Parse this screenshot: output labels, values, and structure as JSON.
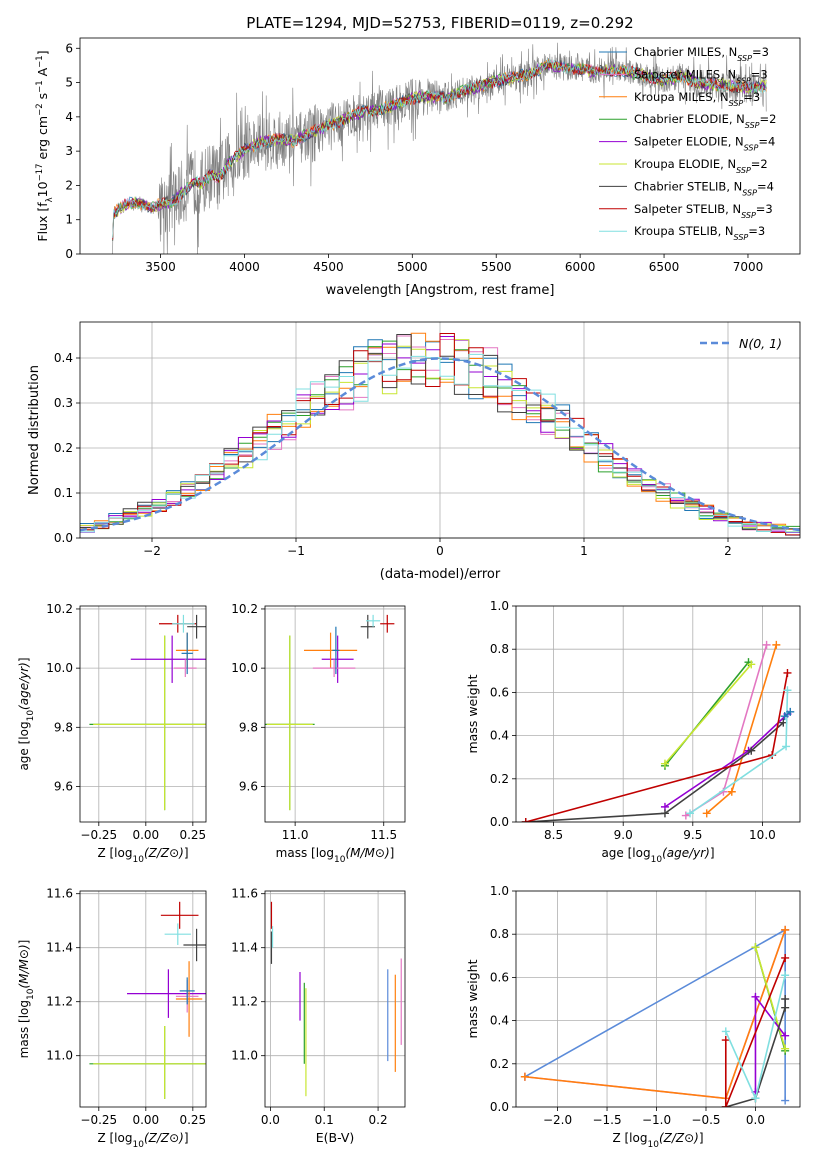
{
  "figure": {
    "title": "PLATE=1294, MJD=52753, FIBERID=0119, z=0.292"
  },
  "chart_data": [
    {
      "id": "spectrum",
      "type": "line",
      "title": "PLATE=1294, MJD=52753, FIBERID=0119, z=0.292",
      "xlabel": "wavelength [Angstrom, rest frame]",
      "ylabel": "Flux [f$_\\lambda$10$^{-17}$ erg cm$^{-2}$ s$^{-1}$ A$^{-1}$]",
      "ylabel_parts": [
        "Flux [f",
        "λ",
        "10",
        "−17",
        " erg cm",
        "−2",
        " s",
        "−1",
        " A",
        "−1",
        "]"
      ],
      "xlim": [
        3020,
        7310
      ],
      "ylim": [
        0,
        6.3
      ],
      "xticks": [
        3500,
        4000,
        4500,
        5000,
        5500,
        6000,
        6500,
        7000
      ],
      "yticks": [
        0,
        1,
        2,
        3,
        4,
        5,
        6
      ],
      "legend_position": "top-right",
      "data_color": "#808080",
      "continuum": [
        [
          3210,
          0.0
        ],
        [
          3220,
          1.15
        ],
        [
          3260,
          1.35
        ],
        [
          3300,
          1.45
        ],
        [
          3350,
          1.5
        ],
        [
          3400,
          1.45
        ],
        [
          3450,
          1.35
        ],
        [
          3500,
          1.45
        ],
        [
          3550,
          1.5
        ],
        [
          3600,
          1.65
        ],
        [
          3650,
          1.9
        ],
        [
          3700,
          2.1
        ],
        [
          3750,
          2.05
        ],
        [
          3800,
          2.35
        ],
        [
          3850,
          2.2
        ],
        [
          3900,
          2.6
        ],
        [
          3950,
          2.85
        ],
        [
          4000,
          3.05
        ],
        [
          4100,
          3.25
        ],
        [
          4200,
          3.35
        ],
        [
          4300,
          3.3
        ],
        [
          4400,
          3.55
        ],
        [
          4500,
          3.75
        ],
        [
          4600,
          3.95
        ],
        [
          4700,
          4.15
        ],
        [
          4800,
          4.2
        ],
        [
          4900,
          4.35
        ],
        [
          5000,
          4.55
        ],
        [
          5100,
          4.6
        ],
        [
          5200,
          4.55
        ],
        [
          5300,
          4.75
        ],
        [
          5400,
          4.9
        ],
        [
          5500,
          5.05
        ],
        [
          5600,
          5.15
        ],
        [
          5700,
          5.25
        ],
        [
          5800,
          5.5
        ],
        [
          5900,
          5.45
        ],
        [
          6000,
          5.4
        ],
        [
          6100,
          5.3
        ],
        [
          6200,
          5.35
        ],
        [
          6300,
          5.3
        ],
        [
          6400,
          5.2
        ],
        [
          6500,
          5.05
        ],
        [
          6600,
          5.2
        ],
        [
          6700,
          5.0
        ],
        [
          6800,
          4.95
        ],
        [
          6900,
          4.9
        ],
        [
          7000,
          4.85
        ],
        [
          7100,
          4.9
        ]
      ],
      "noise_sigma": [
        [
          3200,
          0.1
        ],
        [
          3480,
          0.15
        ],
        [
          3500,
          0.9
        ],
        [
          3700,
          1.0
        ],
        [
          4000,
          0.9
        ],
        [
          4300,
          0.8
        ],
        [
          4700,
          0.55
        ],
        [
          5000,
          0.6
        ],
        [
          5300,
          0.4
        ],
        [
          5800,
          0.4
        ],
        [
          6300,
          0.35
        ],
        [
          7100,
          0.45
        ]
      ],
      "series": [
        {
          "name": "Chabrier MILES, N$_{SSP}$=3",
          "label_main": "Chabrier MILES, N",
          "label_sub": "SSP",
          "label_end": "=3",
          "color": "#1f77b4"
        },
        {
          "name": "Salpeter MILES, N$_{SSP}$=3",
          "label_main": "Salpeter MILES, N",
          "label_sub": "SSP",
          "label_end": "=3",
          "color": "#e377c2"
        },
        {
          "name": "Kroupa MILES, N$_{SSP}$=3",
          "label_main": "Kroupa MILES, N",
          "label_sub": "SSP",
          "label_end": "=3",
          "color": "#ff7f0e"
        },
        {
          "name": "Chabrier ELODIE, N$_{SSP}$=2",
          "label_main": "Chabrier ELODIE, N",
          "label_sub": "SSP",
          "label_end": "=2",
          "color": "#2ca02c"
        },
        {
          "name": "Salpeter ELODIE, N$_{SSP}$=4",
          "label_main": "Salpeter ELODIE, N",
          "label_sub": "SSP",
          "label_end": "=4",
          "color": "#9400d3"
        },
        {
          "name": "Kroupa ELODIE, N$_{SSP}$=2",
          "label_main": "Kroupa ELODIE, N",
          "label_sub": "SSP",
          "label_end": "=2",
          "color": "#c8e632"
        },
        {
          "name": "Chabrier STELIB, N$_{SSP}$=4",
          "label_main": "Chabrier STELIB, N",
          "label_sub": "SSP",
          "label_end": "=4",
          "color": "#404040"
        },
        {
          "name": "Salpeter STELIB, N$_{SSP}$=3",
          "label_main": "Salpeter STELIB, N",
          "label_sub": "SSP",
          "label_end": "=3",
          "color": "#c00000"
        },
        {
          "name": "Kroupa STELIB, N$_{SSP}$=3",
          "label_main": "Kroupa STELIB, N",
          "label_sub": "SSP",
          "label_end": "=3",
          "color": "#80dfe0"
        }
      ]
    },
    {
      "id": "residuals",
      "type": "bar",
      "xlabel": "(data-model)/error",
      "ylabel": "Normed distribution",
      "xlim": [
        -2.5,
        2.5
      ],
      "ylim": [
        0,
        0.48
      ],
      "xticks": [
        -2,
        -1,
        0,
        1,
        2
      ],
      "yticks": [
        0.0,
        0.1,
        0.2,
        0.3,
        0.4
      ],
      "grid": true,
      "bin_width": 0.1,
      "bin_start": -2.5,
      "reference_curve": {
        "name": "$\\mathcal{N}(0,1)$",
        "label": "N(0, 1)",
        "color": "#5b8bd9",
        "style": "dashed",
        "legend_position": "top-right"
      },
      "histogram_colors": [
        "#1f77b4",
        "#e377c2",
        "#ff7f0e",
        "#2ca02c",
        "#9400d3",
        "#c8e632",
        "#404040",
        "#c00000",
        "#80dfe0"
      ]
    },
    {
      "id": "age_vs_Z",
      "type": "scatter",
      "xlabel": "Z [log10(Z/Z⊙)]",
      "ylabel": "age [log10(age/yr)]",
      "xlim": [
        -0.35,
        0.32
      ],
      "ylim": [
        9.48,
        10.21
      ],
      "xticks": [
        -0.25,
        0.0,
        0.25
      ],
      "yticks": [
        9.6,
        9.8,
        10.0,
        10.2
      ],
      "grid": true,
      "points": [
        {
          "x": 0.1,
          "y": 9.81,
          "xerr": 0.4,
          "yerr": [
            0.29,
            0.3
          ],
          "color": "#2ca02c"
        },
        {
          "x": 0.1,
          "y": 9.81,
          "xerr": 0.38,
          "yerr": [
            0.29,
            0.3
          ],
          "color": "#c8e632"
        },
        {
          "x": 0.17,
          "y": 10.15,
          "xerr": 0.1,
          "yerr": 0.03,
          "color": "#c00000"
        },
        {
          "x": 0.27,
          "y": 10.14,
          "xerr": 0.05,
          "yerr": 0.04,
          "color": "#404040"
        },
        {
          "x": 0.2,
          "y": 10.15,
          "xerr": 0.06,
          "yerr": 0.03,
          "color": "#80dfe0"
        },
        {
          "x": 0.14,
          "y": 10.03,
          "xerr": 0.22,
          "yerr": 0.08,
          "color": "#9400d3"
        },
        {
          "x": 0.22,
          "y": 10.06,
          "xerr": 0.06,
          "yerr": 0.06,
          "color": "#ff7f0e"
        },
        {
          "x": 0.21,
          "y": 10.0,
          "xerr": 0.06,
          "yerr": 0.03,
          "color": "#e377c2"
        },
        {
          "x": 0.22,
          "y": 10.05,
          "xerr": 0.03,
          "yerr": 0.07,
          "color": "#1f77b4"
        }
      ]
    },
    {
      "id": "age_vs_mass",
      "type": "scatter",
      "xlabel": "mass [log10(M/M⊙)]",
      "ylabel": "",
      "xlim": [
        10.83,
        11.62
      ],
      "ylim": [
        9.48,
        10.21
      ],
      "xticks": [
        11.0,
        11.5
      ],
      "yticks": [
        9.6,
        9.8,
        10.0,
        10.2
      ],
      "grid": true,
      "points": [
        {
          "x": 10.97,
          "y": 9.81,
          "xerr": 0.14,
          "yerr": [
            0.29,
            0.3
          ],
          "color": "#2ca02c"
        },
        {
          "x": 10.97,
          "y": 9.81,
          "xerr": 0.13,
          "yerr": [
            0.29,
            0.3
          ],
          "color": "#c8e632"
        },
        {
          "x": 11.52,
          "y": 10.15,
          "xerr": 0.04,
          "yerr": 0.03,
          "color": "#c00000"
        },
        {
          "x": 11.41,
          "y": 10.14,
          "xerr": 0.04,
          "yerr": 0.04,
          "color": "#404040"
        },
        {
          "x": 11.44,
          "y": 10.16,
          "xerr": 0.04,
          "yerr": 0.02,
          "color": "#80dfe0"
        },
        {
          "x": 11.24,
          "y": 10.03,
          "xerr": 0.09,
          "yerr": 0.08,
          "color": "#9400d3"
        },
        {
          "x": 11.2,
          "y": 10.06,
          "xerr": 0.15,
          "yerr": 0.06,
          "color": "#ff7f0e"
        },
        {
          "x": 11.22,
          "y": 10.0,
          "xerr": 0.12,
          "yerr": 0.03,
          "color": "#e377c2"
        },
        {
          "x": 11.23,
          "y": 10.06,
          "xerr": 0.02,
          "yerr": 0.08,
          "color": "#1f77b4"
        }
      ]
    },
    {
      "id": "massweight_vs_age",
      "type": "line",
      "xlabel": "age [log10(age/yr)]",
      "ylabel": "mass weight",
      "xlim": [
        8.23,
        10.27
      ],
      "ylim": [
        0,
        1.0
      ],
      "xticks": [
        8.5,
        9.0,
        9.5,
        10.0
      ],
      "yticks": [
        0.0,
        0.2,
        0.4,
        0.6,
        0.8,
        1.0
      ],
      "grid": true,
      "series": [
        {
          "color": "#2ca02c",
          "points": [
            [
              9.3,
              0.26
            ],
            [
              9.9,
              0.74
            ]
          ]
        },
        {
          "color": "#c8e632",
          "points": [
            [
              9.3,
              0.27
            ],
            [
              9.92,
              0.73
            ]
          ]
        },
        {
          "color": "#e377c2",
          "points": [
            [
              9.45,
              0.03
            ],
            [
              9.72,
              0.14
            ],
            [
              10.03,
              0.82
            ]
          ]
        },
        {
          "color": "#ff7f0e",
          "points": [
            [
              9.6,
              0.04
            ],
            [
              9.78,
              0.14
            ],
            [
              10.1,
              0.82
            ]
          ]
        },
        {
          "color": "#9400d3",
          "points": [
            [
              9.3,
              0.07
            ],
            [
              9.9,
              0.33
            ],
            [
              10.18,
              0.5
            ]
          ]
        },
        {
          "color": "#404040",
          "points": [
            [
              8.3,
              0.0
            ],
            [
              9.3,
              0.04
            ],
            [
              9.92,
              0.33
            ],
            [
              10.15,
              0.46
            ]
          ]
        },
        {
          "color": "#c00000",
          "points": [
            [
              8.3,
              0.0
            ],
            [
              10.07,
              0.31
            ],
            [
              10.18,
              0.69
            ]
          ]
        },
        {
          "color": "#80dfe0",
          "points": [
            [
              9.48,
              0.04
            ],
            [
              10.17,
              0.35
            ],
            [
              10.18,
              0.61
            ]
          ]
        },
        {
          "color": "#1f77b4",
          "points": [
            [
              10.16,
              0.49
            ],
            [
              10.2,
              0.51
            ]
          ]
        }
      ]
    },
    {
      "id": "mass_vs_Z",
      "type": "scatter",
      "xlabel": "Z [log10(Z/Z⊙)]",
      "ylabel": "mass [log10(M/M⊙)]",
      "xlim": [
        -0.35,
        0.32
      ],
      "ylim": [
        10.81,
        11.61
      ],
      "xticks": [
        -0.25,
        0.0,
        0.25
      ],
      "yticks": [
        11.0,
        11.2,
        11.4,
        11.6
      ],
      "grid": true,
      "points": [
        {
          "x": 0.1,
          "y": 10.97,
          "xerr": 0.4,
          "yerr": [
            0.13,
            0.14
          ],
          "color": "#2ca02c"
        },
        {
          "x": 0.1,
          "y": 10.97,
          "xerr": 0.38,
          "yerr": [
            0.13,
            0.14
          ],
          "color": "#c8e632"
        },
        {
          "x": 0.18,
          "y": 11.52,
          "xerr": 0.1,
          "yerr": 0.05,
          "color": "#c00000"
        },
        {
          "x": 0.27,
          "y": 11.41,
          "xerr": 0.07,
          "yerr": 0.06,
          "color": "#404040"
        },
        {
          "x": 0.17,
          "y": 11.45,
          "xerr": 0.07,
          "yerr": 0.04,
          "color": "#80dfe0"
        },
        {
          "x": 0.12,
          "y": 11.23,
          "xerr": 0.22,
          "yerr": 0.09,
          "color": "#9400d3"
        },
        {
          "x": 0.23,
          "y": 11.21,
          "xerr": 0.07,
          "yerr": 0.14,
          "color": "#ff7f0e"
        },
        {
          "x": 0.22,
          "y": 11.22,
          "xerr": 0.06,
          "yerr": 0.06,
          "color": "#e377c2"
        },
        {
          "x": 0.22,
          "y": 11.24,
          "xerr": 0.04,
          "yerr": 0.05,
          "color": "#1f77b4"
        }
      ]
    },
    {
      "id": "mass_vs_ebv",
      "type": "scatter",
      "xlabel": "E(B-V)",
      "ylabel": "",
      "xlim": [
        -0.01,
        0.25
      ],
      "ylim": [
        10.81,
        11.61
      ],
      "xticks": [
        0.0,
        0.1,
        0.2
      ],
      "yticks": [
        11.0,
        11.2,
        11.4,
        11.6
      ],
      "grid": true,
      "points": [
        {
          "x": 0.002,
          "y": 11.52,
          "yerr": 0.05,
          "color": "#c00000"
        },
        {
          "x": 0.002,
          "y": 11.4,
          "yerr": 0.06,
          "color": "#404040"
        },
        {
          "x": 0.004,
          "y": 11.44,
          "yerr": 0.04,
          "color": "#80dfe0"
        },
        {
          "x": 0.055,
          "y": 11.22,
          "yerr": 0.09,
          "color": "#9400d3"
        },
        {
          "x": 0.063,
          "y": 11.12,
          "yerr": 0.15,
          "color": "#2ca02c"
        },
        {
          "x": 0.066,
          "y": 11.05,
          "yerr": 0.2,
          "color": "#c8e632"
        },
        {
          "x": 0.218,
          "y": 11.15,
          "yerr": 0.17,
          "color": "#5b8bd9"
        },
        {
          "x": 0.232,
          "y": 11.12,
          "yerr": 0.18,
          "color": "#ff7f0e"
        },
        {
          "x": 0.243,
          "y": 11.2,
          "yerr": 0.16,
          "color": "#e377c2"
        }
      ]
    },
    {
      "id": "massweight_vs_Z",
      "type": "line",
      "xlabel": "Z [log10(Z/Z⊙)]",
      "ylabel": "mass weight",
      "xlim": [
        -2.42,
        0.45
      ],
      "ylim": [
        0,
        1.0
      ],
      "xticks": [
        -2.0,
        -1.5,
        -1.0,
        -0.5,
        0.0
      ],
      "yticks": [
        0.0,
        0.2,
        0.4,
        0.6,
        0.8,
        1.0
      ],
      "grid": true,
      "series": [
        {
          "color": "#5b8bd9",
          "points": [
            [
              -2.33,
              0.14
            ],
            [
              0.3,
              0.82
            ],
            [
              0.3,
              0.03
            ]
          ]
        },
        {
          "color": "#e377c2",
          "points": [
            [
              -2.33,
              0.14
            ],
            [
              -0.3,
              0.04
            ],
            [
              0.3,
              0.82
            ]
          ]
        },
        {
          "color": "#ff7f0e",
          "points": [
            [
              -2.33,
              0.14
            ],
            [
              -0.3,
              0.04
            ],
            [
              0.3,
              0.82
            ]
          ]
        },
        {
          "color": "#2ca02c",
          "points": [
            [
              0.0,
              0.74
            ],
            [
              0.3,
              0.26
            ]
          ]
        },
        {
          "color": "#c8e632",
          "points": [
            [
              0.0,
              0.74
            ],
            [
              0.3,
              0.27
            ]
          ]
        },
        {
          "color": "#9400d3",
          "points": [
            [
              0.0,
              0.07
            ],
            [
              0.0,
              0.51
            ],
            [
              0.3,
              0.33
            ]
          ]
        },
        {
          "color": "#404040",
          "points": [
            [
              -0.3,
              0.0
            ],
            [
              0.0,
              0.04
            ],
            [
              0.3,
              0.46
            ],
            [
              0.3,
              0.5
            ]
          ]
        },
        {
          "color": "#c00000",
          "points": [
            [
              -0.3,
              0.31
            ],
            [
              -0.3,
              0.0
            ],
            [
              0.3,
              0.69
            ]
          ]
        },
        {
          "color": "#80dfe0",
          "points": [
            [
              -0.3,
              0.35
            ],
            [
              0.0,
              0.04
            ],
            [
              0.3,
              0.61
            ]
          ]
        }
      ]
    }
  ]
}
